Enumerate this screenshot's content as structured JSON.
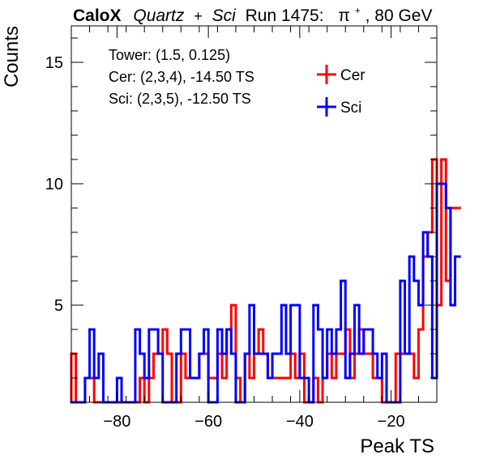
{
  "chart_data": {
    "type": "histogram",
    "title": {
      "brand": "CaloX",
      "material_1": "Quartz",
      "plus": "+",
      "material_2": "Sci",
      "run": "Run 1475:",
      "particle_symbol": "π",
      "particle_charge": "+",
      "energy": ", 80 GeV"
    },
    "xlabel": "Peak TS",
    "ylabel": "Counts",
    "xlim": [
      -90,
      -10
    ],
    "ylim": [
      1,
      16.5
    ],
    "xticks": [
      -80,
      -60,
      -40,
      -20
    ],
    "xtick_labels": [
      "−80",
      "−60",
      "−40",
      "−20"
    ],
    "yticks": [
      5,
      10,
      15
    ],
    "ytick_labels": [
      "5",
      "10",
      "15"
    ],
    "annotations": [
      "Tower: (1.5, 0.125)",
      "Cer: (2,3,4), -14.50 TS",
      "Sci: (2,3,5), -12.50 TS"
    ],
    "legend": {
      "placement": "top-right"
    },
    "bin_edges_start": -90,
    "bin_width": 1,
    "series": [
      {
        "name": "Cer",
        "color": "#ff0000",
        "values": [
          3,
          1,
          1,
          2,
          2,
          1,
          1,
          1,
          1,
          1,
          1,
          1,
          1,
          1,
          1,
          2,
          1,
          2,
          3,
          3,
          4,
          3,
          1,
          1,
          3,
          2,
          2,
          2,
          3,
          3,
          2,
          2,
          3,
          2,
          4,
          5,
          2,
          1,
          3,
          2,
          3,
          4,
          3,
          2,
          2,
          2,
          2,
          2,
          3,
          2,
          3,
          1,
          1,
          2,
          1,
          2,
          3,
          2,
          3,
          3,
          4,
          2,
          3,
          4,
          3,
          3,
          2,
          2,
          1,
          1,
          1,
          3,
          3,
          3,
          3,
          2,
          4,
          7,
          8,
          11,
          5,
          11,
          6,
          9,
          9
        ]
      },
      {
        "name": "Sci",
        "color": "#0000ff",
        "values": [
          1,
          1,
          1,
          2,
          4,
          2,
          3,
          1,
          1,
          1,
          2,
          1,
          1,
          1,
          4,
          3,
          2,
          4,
          4,
          3,
          1,
          1,
          1,
          3,
          4,
          4,
          2,
          2,
          3,
          4,
          1,
          1,
          4,
          3,
          4,
          3,
          1,
          1,
          3,
          5,
          3,
          3,
          3,
          2,
          3,
          3,
          5,
          3,
          5,
          5,
          2,
          2,
          1,
          5,
          4,
          2,
          4,
          3,
          4,
          6,
          2,
          3,
          5,
          3,
          4,
          4,
          3,
          2,
          3,
          1,
          1,
          1,
          6,
          3,
          7,
          6,
          5,
          8,
          7,
          2,
          10,
          10,
          9,
          5,
          7
        ]
      }
    ]
  }
}
